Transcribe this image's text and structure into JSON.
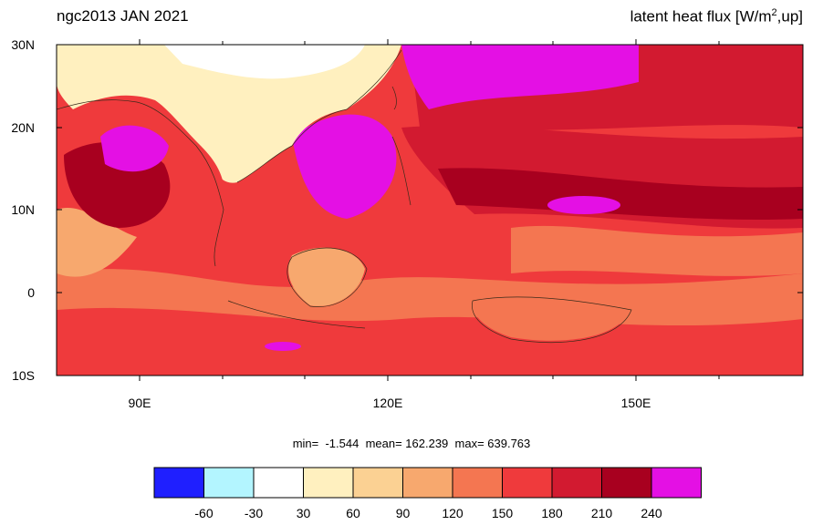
{
  "title_left": "ngc2013 JAN 2021",
  "title_right": {
    "prefix": "latent heat flux [W/m",
    "sup": "2",
    "suffix": ",up]"
  },
  "lat_labels": [
    "30N",
    "20N",
    "10N",
    "0",
    "10S"
  ],
  "lon_labels": [
    "90E",
    "120E",
    "150E"
  ],
  "stats": {
    "text": "min=  -1.544  mean= 162.239  max= 639.763"
  },
  "colorbar": {
    "colors": [
      "#1f1fff",
      "#b3f5ff",
      "#ffffff",
      "#fff0bf",
      "#fbd193",
      "#f7a86e",
      "#f47651",
      "#ef3a3c",
      "#d21a30",
      "#a8001f",
      "#e410e4"
    ],
    "tick_labels": [
      "-60",
      "-30",
      "30",
      "60",
      "90",
      "120",
      "150",
      "180",
      "210",
      "240"
    ]
  }
}
